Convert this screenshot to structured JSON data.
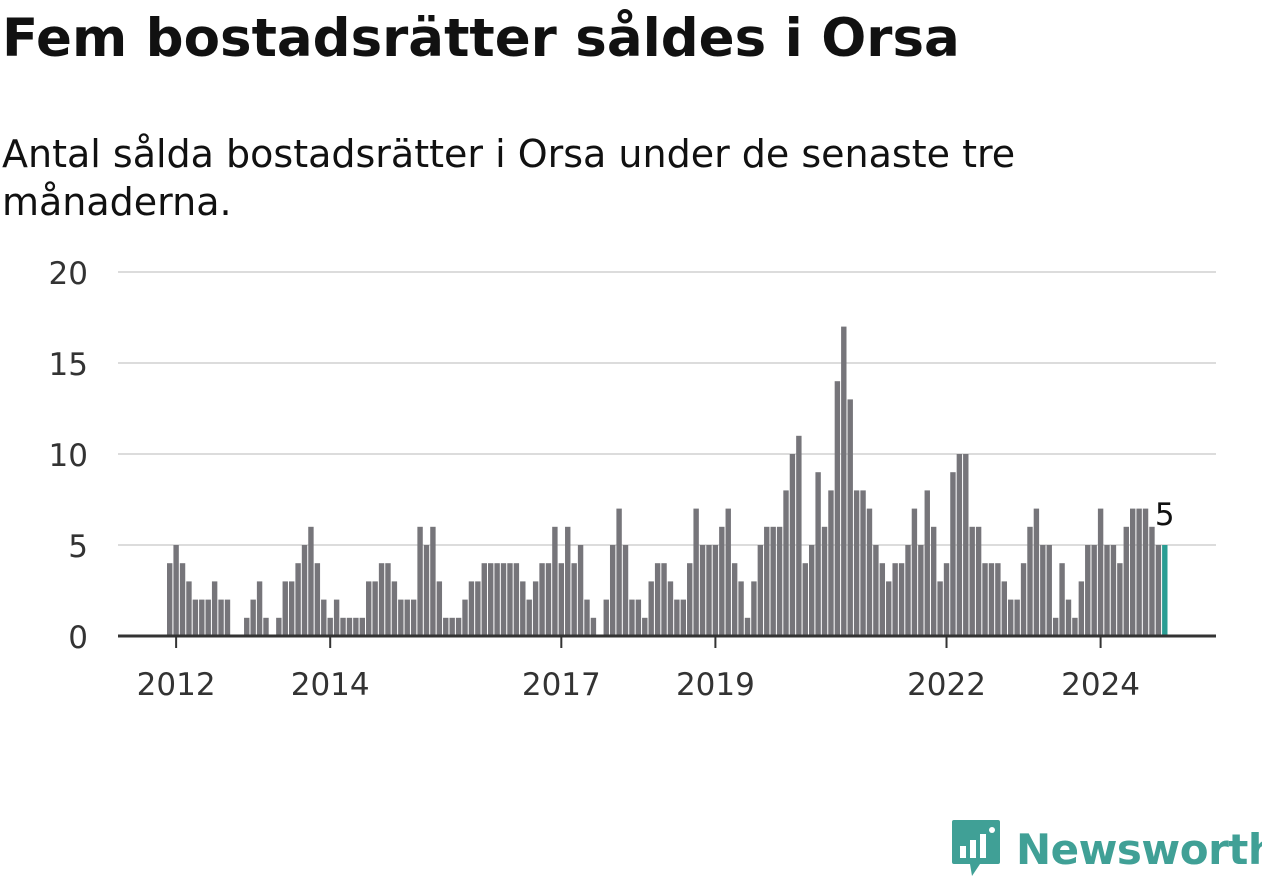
{
  "header": {
    "title": "Fem bostadsrätter såldes i Orsa",
    "subtitle": "Antal sålda bostadsrätter i Orsa under de senaste tre månaderna."
  },
  "brand": {
    "name": "Newsworthy",
    "color": "#40a096",
    "icon": "bar-chart-bubble-icon"
  },
  "colors": {
    "bar": "#76757a",
    "highlight": "#2a9d93",
    "grid": "#dcdcdc",
    "axis": "#333333"
  },
  "chart_data": {
    "type": "bar",
    "title": "Fem bostadsrätter såldes i Orsa",
    "subtitle": "Antal sålda bostadsrätter i Orsa under de senaste tre månaderna.",
    "ylim": [
      0,
      20
    ],
    "yticks": [
      0,
      5,
      10,
      15,
      20
    ],
    "xticks": [
      "2012",
      "2014",
      "2017",
      "2019",
      "2022",
      "2024"
    ],
    "xtick_months": [
      "2012-01",
      "2014-01",
      "2017-01",
      "2019-01",
      "2022-01",
      "2024-01"
    ],
    "first_month": "2011-12",
    "grid": true,
    "highlight_last": true,
    "last_label": "5",
    "values": [
      4,
      5,
      4,
      3,
      2,
      2,
      2,
      3,
      2,
      2,
      0,
      0,
      1,
      2,
      3,
      1,
      0,
      1,
      3,
      3,
      4,
      5,
      6,
      4,
      2,
      1,
      2,
      1,
      1,
      1,
      1,
      3,
      3,
      4,
      4,
      3,
      2,
      2,
      2,
      6,
      5,
      6,
      3,
      1,
      1,
      1,
      2,
      3,
      3,
      4,
      4,
      4,
      4,
      4,
      4,
      3,
      2,
      3,
      4,
      4,
      6,
      4,
      6,
      4,
      5,
      2,
      1,
      0,
      2,
      5,
      7,
      5,
      2,
      2,
      1,
      3,
      4,
      4,
      3,
      2,
      2,
      4,
      7,
      5,
      5,
      5,
      6,
      7,
      4,
      3,
      1,
      3,
      5,
      6,
      6,
      6,
      8,
      10,
      11,
      4,
      5,
      9,
      6,
      8,
      14,
      17,
      13,
      8,
      8,
      7,
      5,
      4,
      3,
      4,
      4,
      5,
      7,
      5,
      8,
      6,
      3,
      4,
      9,
      10,
      10,
      6,
      6,
      4,
      4,
      4,
      3,
      2,
      2,
      4,
      6,
      7,
      5,
      5,
      1,
      4,
      2,
      1,
      3,
      5,
      5,
      7,
      5,
      5,
      4,
      6,
      7,
      7,
      7,
      6,
      5,
      5
    ]
  }
}
